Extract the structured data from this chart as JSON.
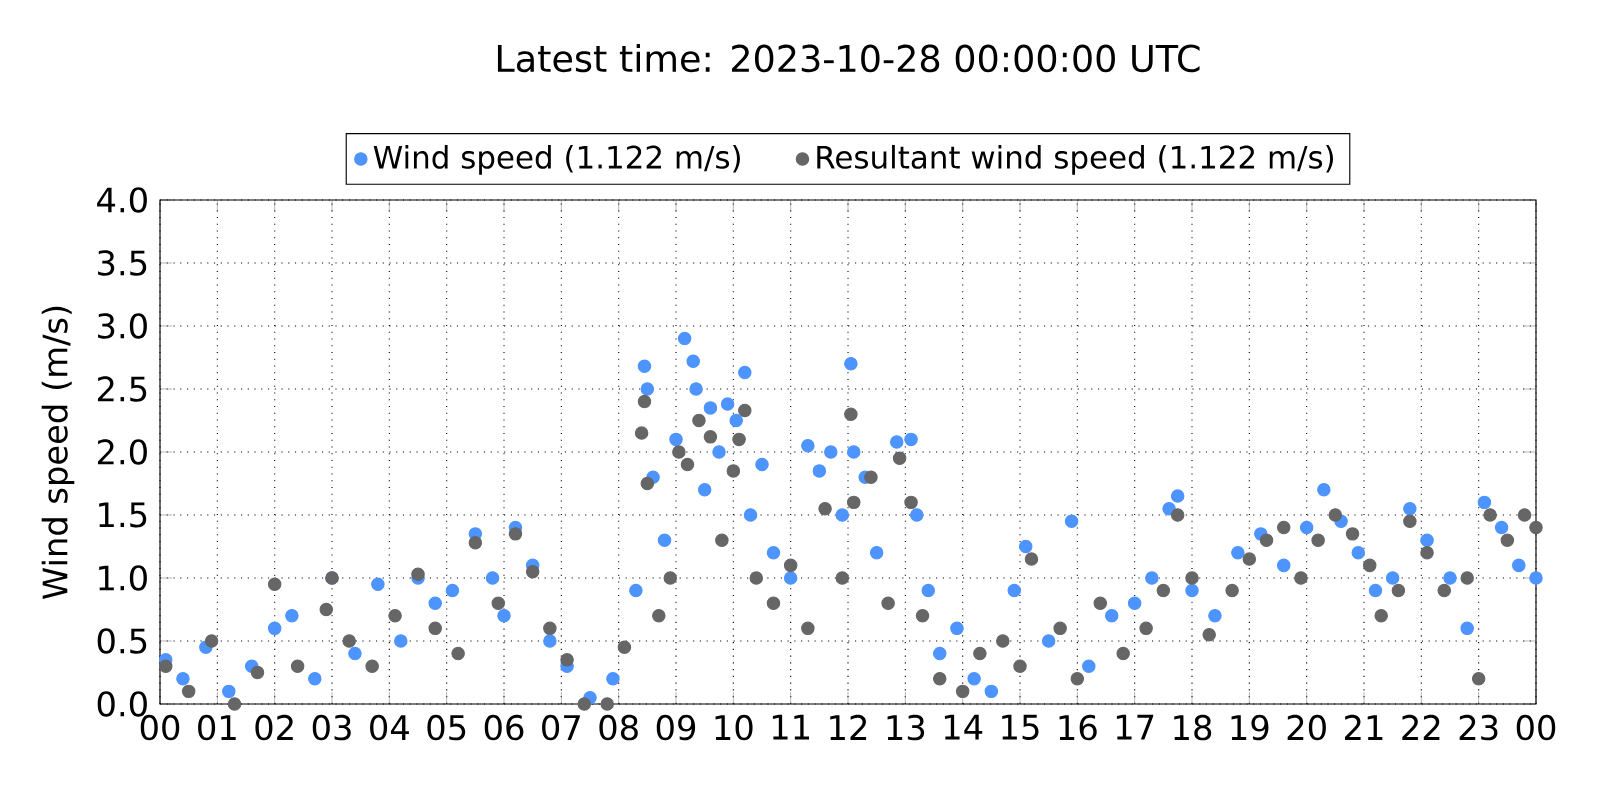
{
  "chart_data": {
    "type": "scatter",
    "title": "Latest time: 2023-10-28 00:00:00 UTC",
    "ylabel": "Wind speed (m/s)",
    "xlim": [
      0,
      24
    ],
    "ylim": [
      0,
      4
    ],
    "xticks": [
      {
        "value": 0,
        "label": "00"
      },
      {
        "value": 1,
        "label": "01"
      },
      {
        "value": 2,
        "label": "02"
      },
      {
        "value": 3,
        "label": "03"
      },
      {
        "value": 4,
        "label": "04"
      },
      {
        "value": 5,
        "label": "05"
      },
      {
        "value": 6,
        "label": "06"
      },
      {
        "value": 7,
        "label": "07"
      },
      {
        "value": 8,
        "label": "08"
      },
      {
        "value": 9,
        "label": "09"
      },
      {
        "value": 10,
        "label": "10"
      },
      {
        "value": 11,
        "label": "11"
      },
      {
        "value": 12,
        "label": "12"
      },
      {
        "value": 13,
        "label": "13"
      },
      {
        "value": 14,
        "label": "14"
      },
      {
        "value": 15,
        "label": "15"
      },
      {
        "value": 16,
        "label": "16"
      },
      {
        "value": 17,
        "label": "17"
      },
      {
        "value": 18,
        "label": "18"
      },
      {
        "value": 19,
        "label": "19"
      },
      {
        "value": 20,
        "label": "20"
      },
      {
        "value": 21,
        "label": "21"
      },
      {
        "value": 22,
        "label": "22"
      },
      {
        "value": 23,
        "label": "23"
      },
      {
        "value": 24,
        "label": "00"
      }
    ],
    "yticks": [
      {
        "value": 0,
        "label": "0.0"
      },
      {
        "value": 0.5,
        "label": "0.5"
      },
      {
        "value": 1,
        "label": "1.0"
      },
      {
        "value": 1.5,
        "label": "1.5"
      },
      {
        "value": 2,
        "label": "2.0"
      },
      {
        "value": 2.5,
        "label": "2.5"
      },
      {
        "value": 3,
        "label": "3.0"
      },
      {
        "value": 3.5,
        "label": "3.5"
      },
      {
        "value": 4,
        "label": "4.0"
      }
    ],
    "grid": true,
    "legend": "top",
    "marker": "circle",
    "series": [
      {
        "name": "Wind speed (1.122 m/s)",
        "color": "#4d94ff",
        "x": [
          0.1,
          0.4,
          0.8,
          1.2,
          1.6,
          2.0,
          2.3,
          2.7,
          3.0,
          3.4,
          3.8,
          4.2,
          4.5,
          4.8,
          5.1,
          5.5,
          5.8,
          6.0,
          6.2,
          6.5,
          6.8,
          7.1,
          7.5,
          7.9,
          8.3,
          8.45,
          8.5,
          8.6,
          8.8,
          9.0,
          9.15,
          9.3,
          9.35,
          9.5,
          9.6,
          9.75,
          9.9,
          10.05,
          10.2,
          10.3,
          10.5,
          10.7,
          11.0,
          11.3,
          11.5,
          11.7,
          11.9,
          12.05,
          12.1,
          12.3,
          12.5,
          12.85,
          13.1,
          13.2,
          13.4,
          13.6,
          13.9,
          14.2,
          14.5,
          14.9,
          15.1,
          15.5,
          15.9,
          16.2,
          16.6,
          17.0,
          17.3,
          17.6,
          17.75,
          18.0,
          18.4,
          18.8,
          19.2,
          19.6,
          20.0,
          20.3,
          20.6,
          20.9,
          21.2,
          21.5,
          21.8,
          22.1,
          22.5,
          22.8,
          23.1,
          23.4,
          23.7,
          24.0
        ],
        "values": [
          0.35,
          0.2,
          0.45,
          0.1,
          0.3,
          0.6,
          0.7,
          0.2,
          1.0,
          0.4,
          0.95,
          0.5,
          1.0,
          0.8,
          0.9,
          1.35,
          1.0,
          0.7,
          1.4,
          1.1,
          0.5,
          0.3,
          0.05,
          0.2,
          0.9,
          2.68,
          2.5,
          1.8,
          1.3,
          2.1,
          2.9,
          2.72,
          2.5,
          1.7,
          2.35,
          2.0,
          2.38,
          2.25,
          2.63,
          1.5,
          1.9,
          1.2,
          1.0,
          2.05,
          1.85,
          2.0,
          1.5,
          2.7,
          2.0,
          1.8,
          1.2,
          2.08,
          2.1,
          1.5,
          0.9,
          0.4,
          0.6,
          0.2,
          0.1,
          0.9,
          1.25,
          0.5,
          1.45,
          0.3,
          0.7,
          0.8,
          1.0,
          1.55,
          1.65,
          0.9,
          0.7,
          1.2,
          1.35,
          1.1,
          1.4,
          1.7,
          1.45,
          1.2,
          0.9,
          1.0,
          1.55,
          1.3,
          1.0,
          0.6,
          1.6,
          1.4,
          1.1,
          1.0
        ]
      },
      {
        "name": "Resultant wind speed (1.122 m/s)",
        "color": "#666666",
        "x": [
          0.1,
          0.5,
          0.9,
          1.3,
          1.7,
          2.0,
          2.4,
          2.9,
          3.0,
          3.3,
          3.7,
          4.1,
          4.5,
          4.8,
          5.2,
          5.5,
          5.9,
          6.2,
          6.5,
          6.8,
          7.1,
          7.4,
          7.8,
          8.1,
          8.4,
          8.45,
          8.5,
          8.7,
          8.9,
          9.05,
          9.2,
          9.4,
          9.6,
          9.8,
          10.0,
          10.1,
          10.2,
          10.4,
          10.7,
          11.0,
          11.3,
          11.6,
          11.9,
          12.05,
          12.1,
          12.4,
          12.7,
          12.9,
          13.1,
          13.3,
          13.6,
          14.0,
          14.3,
          14.7,
          15.0,
          15.2,
          15.7,
          16.0,
          16.4,
          16.8,
          17.2,
          17.5,
          17.75,
          18.0,
          18.3,
          18.7,
          19.0,
          19.3,
          19.6,
          19.9,
          20.2,
          20.5,
          20.8,
          21.1,
          21.3,
          21.6,
          21.8,
          22.1,
          22.4,
          22.8,
          23.0,
          23.2,
          23.5,
          23.8,
          24.0
        ],
        "values": [
          0.3,
          0.1,
          0.5,
          0.0,
          0.25,
          0.95,
          0.3,
          0.75,
          1.0,
          0.5,
          0.3,
          0.7,
          1.03,
          0.6,
          0.4,
          1.28,
          0.8,
          1.35,
          1.05,
          0.6,
          0.35,
          0.0,
          0.0,
          0.45,
          2.15,
          2.4,
          1.75,
          0.7,
          1.0,
          2.0,
          1.9,
          2.25,
          2.12,
          1.3,
          1.85,
          2.1,
          2.33,
          1.0,
          0.8,
          1.1,
          0.6,
          1.55,
          1.0,
          2.3,
          1.6,
          1.8,
          0.8,
          1.95,
          1.6,
          0.7,
          0.2,
          0.1,
          0.4,
          0.5,
          0.3,
          1.15,
          0.6,
          0.2,
          0.8,
          0.4,
          0.6,
          0.9,
          1.5,
          1.0,
          0.55,
          0.9,
          1.15,
          1.3,
          1.4,
          1.0,
          1.3,
          1.5,
          1.35,
          1.1,
          0.7,
          0.9,
          1.45,
          1.2,
          0.9,
          1.0,
          0.2,
          1.5,
          1.3,
          1.5,
          1.4
        ]
      }
    ]
  }
}
